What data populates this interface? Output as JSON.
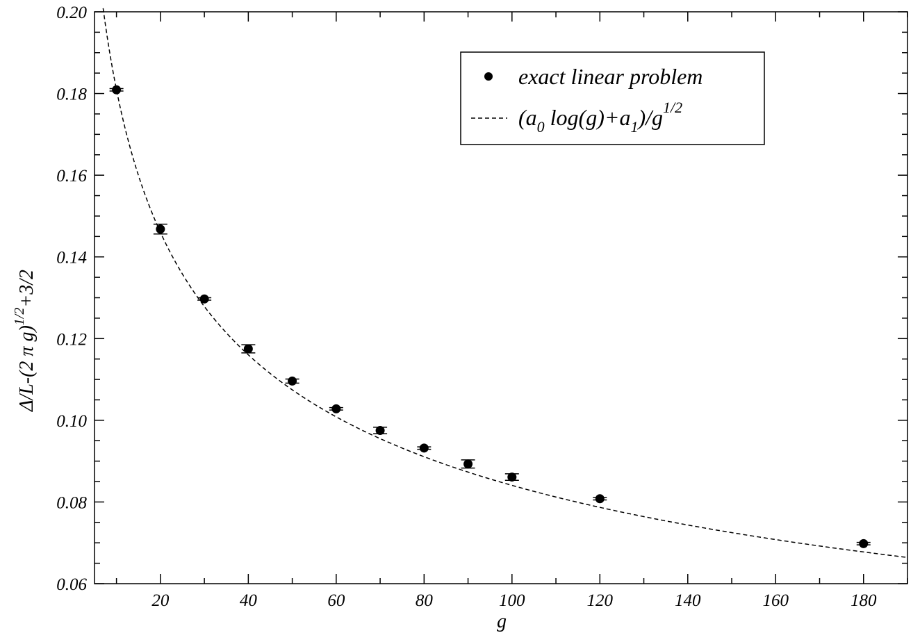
{
  "chart_data": {
    "type": "scatter",
    "title": "",
    "xlabel": "g",
    "ylabel": {
      "base": "Δ/L-(2 π g)",
      "exponent": "1/2",
      "suffix": "+3/2"
    },
    "xlim": [
      5,
      190
    ],
    "ylim": [
      0.06,
      0.2
    ],
    "x_ticks": [
      20,
      40,
      60,
      80,
      100,
      120,
      140,
      160,
      180
    ],
    "x_tick_labels": [
      "20",
      "40",
      "60",
      "80",
      "100",
      "120",
      "140",
      "160",
      "180"
    ],
    "y_ticks": [
      0.06,
      0.08,
      0.1,
      0.12,
      0.14,
      0.16,
      0.18,
      0.2
    ],
    "y_tick_labels": [
      "0.06",
      "0.08",
      "0.10",
      "0.12",
      "0.14",
      "0.16",
      "0.18",
      "0.20"
    ],
    "grid": false,
    "legend_position": "top-right",
    "legend": [
      {
        "label": "exact linear problem",
        "marker": "filled-circle"
      },
      {
        "label_parts": {
          "open": "(a",
          "sub0": "0",
          "mid": " log(g)+a",
          "sub1": "1",
          "slash": ")/g",
          "sup": "1/2"
        },
        "marker": "dashed-line"
      }
    ],
    "series": [
      {
        "kind": "points-with-errorbars",
        "x": [
          10,
          20,
          30,
          40,
          50,
          60,
          70,
          80,
          90,
          100,
          120,
          180
        ],
        "y": [
          0.1809,
          0.1468,
          0.1297,
          0.1175,
          0.1096,
          0.1028,
          0.0975,
          0.0932,
          0.0893,
          0.0861,
          0.0808,
          0.0698
        ],
        "yerr": [
          0.0003,
          0.0012,
          0.0003,
          0.001,
          0.0005,
          0.0003,
          0.0008,
          0.0003,
          0.001,
          0.0008,
          0.0003,
          0.0003
        ]
      },
      {
        "kind": "fit-curve",
        "model": "(a0*ln(g)+a1)/sqrt(g)",
        "a0": 0.1166,
        "a1": 0.3037,
        "x_range": [
          6.5,
          190
        ]
      }
    ],
    "colors": {
      "foreground": "#000000",
      "background": "#ffffff"
    }
  }
}
